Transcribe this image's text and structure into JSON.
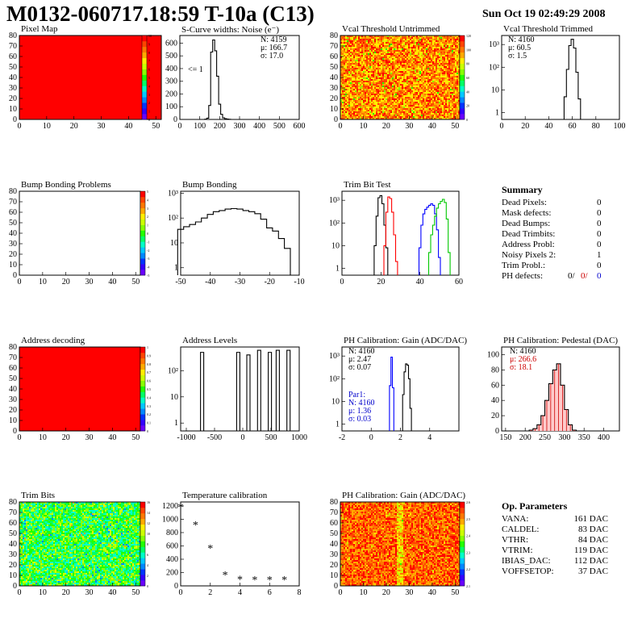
{
  "header": {
    "title": "M0132-060717.18:59 T-10a (C13)",
    "date": "Sun Oct 19 02:49:29 2008"
  },
  "palette": [
    "#6a00ff",
    "#3300ff",
    "#0033ff",
    "#0088ff",
    "#00c8ff",
    "#00ffc8",
    "#00ff66",
    "#22ff00",
    "#88ff00",
    "#ccff00",
    "#ffee00",
    "#ffaa00",
    "#ff7700",
    "#ff4400",
    "#ff0000"
  ],
  "chart_data": [
    {
      "id": "pixel-map",
      "type": "heatmap",
      "title": "Pixel Map",
      "xticks": [
        "0",
        "10",
        "20",
        "30",
        "40",
        "50"
      ],
      "yticks": [
        "0",
        "10",
        "20",
        "30",
        "40",
        "50",
        "60",
        "70",
        "80"
      ],
      "zticks": [
        "0",
        "1",
        "2",
        "3",
        "4",
        "5",
        "6",
        "7",
        "8",
        "9",
        "10"
      ],
      "fill": "uniform-max"
    },
    {
      "id": "scurve",
      "type": "bar",
      "title": "S-Curve widths: Noise (e⁻)",
      "xticks": [
        "0",
        "100",
        "200",
        "300",
        "400",
        "500",
        "600"
      ],
      "yticks": [
        "0",
        "100",
        "200",
        "300",
        "400",
        "500",
        "600"
      ],
      "xlim": [
        0,
        600
      ],
      "ylim": [
        0,
        660
      ],
      "x": [
        130,
        140,
        150,
        160,
        170,
        180,
        190,
        200,
        210,
        220,
        230,
        240,
        250
      ],
      "values": [
        2,
        10,
        110,
        530,
        625,
        540,
        340,
        120,
        40,
        12,
        6,
        3,
        1
      ],
      "annotation": "<= 1",
      "stats": [
        "N: 4159",
        "μ: 166.7",
        "σ: 17.0"
      ]
    },
    {
      "id": "vcal-untrimmed",
      "type": "heatmap",
      "title": "Vcal Threshold Untrimmed",
      "xticks": [
        "0",
        "10",
        "20",
        "30",
        "40",
        "50"
      ],
      "yticks": [
        "0",
        "10",
        "20",
        "30",
        "40",
        "50",
        "60",
        "70",
        "80"
      ],
      "zticks": [
        "0",
        "20",
        "40",
        "60",
        "80",
        "100",
        "120"
      ],
      "fill": "noise-warm"
    },
    {
      "id": "vcal-trimmed",
      "type": "bar",
      "title": "Vcal Threshold Trimmed",
      "yscale": "log",
      "xticks": [
        "0",
        "20",
        "40",
        "60",
        "80",
        "100"
      ],
      "yticks": [
        "1",
        "10",
        "10²",
        "10³"
      ],
      "xlim": [
        0,
        100
      ],
      "ylim": [
        0.5,
        2500
      ],
      "x": [
        54,
        56,
        58,
        60,
        62,
        64,
        66
      ],
      "values": [
        5,
        80,
        900,
        1700,
        700,
        60,
        4
      ],
      "stats": [
        "N: 4160",
        "μ: 60.5",
        "σ:  1.5"
      ]
    },
    {
      "id": "bump-problems",
      "type": "heatmap",
      "title": "Bump Bonding Problems",
      "xticks": [
        "0",
        "10",
        "20",
        "30",
        "40",
        "50"
      ],
      "yticks": [
        "0",
        "10",
        "20",
        "30",
        "40",
        "50",
        "60",
        "70",
        "80"
      ],
      "zticks": [
        "-5",
        "-4",
        "-3",
        "-2",
        "-1",
        "0",
        "1",
        "2",
        "3",
        "4",
        "5"
      ],
      "fill": "empty"
    },
    {
      "id": "bump-bonding",
      "type": "bar",
      "title": "Bump Bonding",
      "yscale": "log",
      "xticks": [
        "-50",
        "-40",
        "-30",
        "-20",
        "-10"
      ],
      "yticks": [
        "1",
        "10",
        "10²",
        "10³"
      ],
      "xlim": [
        -50,
        -10
      ],
      "ylim": [
        0.5,
        1200
      ],
      "x": [
        -50,
        -48,
        -46,
        -44,
        -42,
        -40,
        -38,
        -36,
        -34,
        -32,
        -30,
        -28,
        -26,
        -24,
        -22,
        -20,
        -18,
        -16,
        -14
      ],
      "values": [
        35,
        45,
        55,
        70,
        100,
        140,
        180,
        200,
        230,
        240,
        230,
        200,
        180,
        150,
        90,
        40,
        30,
        15,
        6
      ]
    },
    {
      "id": "trim-bits",
      "type": "line",
      "title": "Trim Bit Test",
      "yscale": "log",
      "xticks": [
        "0",
        "20",
        "40",
        "60"
      ],
      "yticks": [
        "1",
        "10",
        "10²",
        "10³"
      ],
      "xlim": [
        0,
        60
      ],
      "ylim": [
        0.5,
        2500
      ],
      "series": [
        {
          "color": "#000000",
          "x": [
            17,
            18,
            19,
            20,
            21,
            22,
            23
          ],
          "values": [
            10,
            200,
            1300,
            1600,
            700,
            80,
            8
          ]
        },
        {
          "color": "#ff0000",
          "x": [
            22,
            23,
            24,
            25,
            26,
            27,
            28
          ],
          "values": [
            10,
            300,
            1400,
            1200,
            300,
            30,
            2
          ]
        },
        {
          "color": "#0000ff",
          "x": [
            40,
            41,
            42,
            43,
            44,
            45,
            46,
            47,
            48,
            49,
            50
          ],
          "values": [
            8,
            80,
            250,
            400,
            500,
            600,
            700,
            600,
            250,
            50,
            3
          ]
        },
        {
          "color": "#00c800",
          "x": [
            45,
            46,
            47,
            48,
            49,
            50,
            51,
            52,
            53,
            54,
            55
          ],
          "values": [
            5,
            30,
            80,
            200,
            450,
            700,
            900,
            1100,
            800,
            150,
            5
          ]
        }
      ]
    },
    {
      "id": "addr-decoding",
      "type": "heatmap",
      "title": "Address decoding",
      "xticks": [
        "0",
        "10",
        "20",
        "30",
        "40",
        "50"
      ],
      "yticks": [
        "0",
        "10",
        "20",
        "30",
        "40",
        "50",
        "60",
        "70",
        "80"
      ],
      "zticks": [
        "0",
        "0.1",
        "0.2",
        "0.3",
        "0.4",
        "0.5",
        "0.6",
        "0.7",
        "0.8",
        "0.9",
        "1"
      ],
      "fill": "uniform-max"
    },
    {
      "id": "addr-levels",
      "type": "bar",
      "title": "Address Levels",
      "yscale": "log",
      "xticks": [
        "-1000",
        "-500",
        "0",
        "500",
        "1000"
      ],
      "yticks": [
        "1",
        "10",
        "10²"
      ],
      "xlim": [
        -1100,
        1000
      ],
      "ylim": [
        0.5,
        800
      ],
      "x": [
        -720,
        -80,
        100,
        290,
        480,
        620,
        810
      ],
      "values": [
        500,
        500,
        400,
        600,
        500,
        600,
        600
      ]
    },
    {
      "id": "ph-gain",
      "type": "bar",
      "title": "PH Calibration: Gain (ADC/DAC)",
      "yscale": "log",
      "xticks": [
        "-2",
        "0",
        "2",
        "4"
      ],
      "yticks": [
        "1",
        "10",
        "10²",
        "10³"
      ],
      "xlim": [
        -2,
        6
      ],
      "ylim": [
        0.5,
        2500
      ],
      "series": [
        {
          "color": "#000000",
          "x": [
            2.2,
            2.3,
            2.4,
            2.5,
            2.6,
            2.7
          ],
          "values": [
            20,
            200,
            450,
            400,
            100,
            5
          ]
        },
        {
          "color": "#0000ff",
          "x": [
            1.3,
            1.4,
            1.5
          ],
          "values": [
            50,
            900,
            40
          ]
        }
      ],
      "stats": [
        "N: 4160",
        "μ: 2.47",
        "σ: 0.07"
      ],
      "stats2": [
        "Par1:",
        "N: 4160",
        "μ: 1.36",
        "σ: 0.03"
      ]
    },
    {
      "id": "ph-pedestal",
      "type": "bar",
      "title": "PH Calibration: Pedestal (DAC)",
      "xticks": [
        "150",
        "200",
        "250",
        "300",
        "350",
        "400"
      ],
      "yticks": [
        "0",
        "20",
        "40",
        "60",
        "80",
        "100"
      ],
      "xlim": [
        140,
        440
      ],
      "ylim": [
        0,
        110
      ],
      "x": [
        215,
        225,
        235,
        245,
        255,
        265,
        275,
        285,
        295,
        305,
        315,
        325
      ],
      "values": [
        1,
        3,
        8,
        20,
        40,
        62,
        80,
        88,
        60,
        28,
        8,
        1
      ],
      "stats": [
        "N: 4160",
        "μ: 266.6",
        "σ: 18.1"
      ]
    },
    {
      "id": "trim-bits-map",
      "type": "heatmap",
      "title": "Trim Bits",
      "xticks": [
        "0",
        "10",
        "20",
        "30",
        "40",
        "50"
      ],
      "yticks": [
        "0",
        "10",
        "20",
        "30",
        "40",
        "50",
        "60",
        "70",
        "80"
      ],
      "zticks": [
        "0",
        "2",
        "4",
        "6",
        "8",
        "10",
        "12",
        "14",
        "16"
      ],
      "fill": "noise-cool"
    },
    {
      "id": "temp-cal",
      "type": "scatter",
      "title": "Temperature calibration",
      "xticks": [
        "0",
        "2",
        "4",
        "6",
        "8"
      ],
      "yticks": [
        "0",
        "200",
        "400",
        "600",
        "800",
        "1000",
        "1200"
      ],
      "xlim": [
        0,
        8
      ],
      "ylim": [
        0,
        1260
      ],
      "x": [
        0,
        1,
        2,
        3,
        4,
        5,
        6,
        7
      ],
      "values": [
        1190,
        920,
        570,
        170,
        100,
        95,
        95,
        95
      ]
    },
    {
      "id": "ph-gain-map",
      "type": "heatmap",
      "title": "PH Calibration: Gain (ADC/DAC)",
      "xticks": [
        "0",
        "10",
        "20",
        "30",
        "40",
        "50"
      ],
      "yticks": [
        "0",
        "10",
        "20",
        "30",
        "40",
        "50",
        "60",
        "70",
        "80"
      ],
      "zticks": [
        "2.1",
        "2.2",
        "2.3",
        "2.4",
        "2.5",
        "2.6"
      ],
      "fill": "noise-warm2"
    }
  ],
  "summary": {
    "title": "Summary",
    "rows": [
      {
        "label": "Dead Pixels:",
        "value": "0"
      },
      {
        "label": "Mask defects:",
        "value": "0"
      },
      {
        "label": "Dead Bumps:",
        "value": "0"
      },
      {
        "label": "Dead Trimbits:",
        "value": "0"
      },
      {
        "label": "Address Probl:",
        "value": "0"
      },
      {
        "label": "Noisy Pixels 2:",
        "value": "1"
      },
      {
        "label": "Trim Probl.:",
        "value": "0"
      }
    ],
    "ph_label": "PH defects:",
    "ph_values": [
      "0/",
      "0/",
      "0"
    ]
  },
  "params": {
    "title": "Op. Parameters",
    "rows": [
      {
        "label": "VANA:",
        "value": "161 DAC"
      },
      {
        "label": "CALDEL:",
        "value": "83 DAC"
      },
      {
        "label": "VTHR:",
        "value": "84 DAC"
      },
      {
        "label": "VTRIM:",
        "value": "119 DAC"
      },
      {
        "label": "IBIAS_DAC:",
        "value": "112 DAC"
      },
      {
        "label": "VOFFSETOP:",
        "value": "37 DAC"
      }
    ]
  }
}
